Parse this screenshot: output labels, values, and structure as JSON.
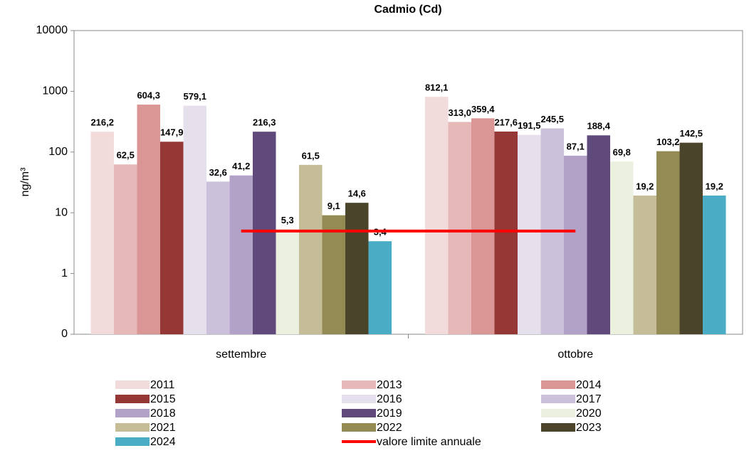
{
  "chart_data": {
    "type": "bar",
    "title": "Cadmio (Cd)",
    "y_label": "ng/m³",
    "categories": [
      "settembre",
      "ottobre"
    ],
    "log_scale": true,
    "ylim": [
      0.1,
      10000
    ],
    "yticks": [
      {
        "value": 0.1,
        "label": "0"
      },
      1,
      10,
      100,
      1000,
      10000
    ],
    "series": [
      {
        "name": "2011",
        "color": "#f2dcdb",
        "values": [
          216.2,
          812.1
        ],
        "value_labels": [
          "216,2",
          "812,1"
        ]
      },
      {
        "name": "2013",
        "color": "#e6b9b8",
        "values": [
          62.5,
          313.0
        ],
        "value_labels": [
          "62,5",
          "313,0"
        ]
      },
      {
        "name": "2014",
        "color": "#d99694",
        "values": [
          604.3,
          359.4
        ],
        "value_labels": [
          "604,3",
          "359,4"
        ]
      },
      {
        "name": "2015",
        "color": "#953735",
        "values": [
          147.9,
          217.6
        ],
        "value_labels": [
          "147,9",
          "217,6"
        ]
      },
      {
        "name": "2016",
        "color": "#e6e0ec",
        "values": [
          579.1,
          191.5
        ],
        "value_labels": [
          "579,1",
          "191,5"
        ]
      },
      {
        "name": "2017",
        "color": "#ccc1da",
        "values": [
          32.6,
          245.5
        ],
        "value_labels": [
          "32,6",
          "245,5"
        ]
      },
      {
        "name": "2018",
        "color": "#b3a2c7",
        "values": [
          41.2,
          87.1
        ],
        "value_labels": [
          "41,2",
          "87,1"
        ]
      },
      {
        "name": "2019",
        "color": "#604a7b",
        "values": [
          216.3,
          188.4
        ],
        "value_labels": [
          "216,3",
          "188,4"
        ]
      },
      {
        "name": "2020",
        "color": "#ebf1de",
        "values": [
          5.3,
          69.8
        ],
        "value_labels": [
          "5,3",
          "69,8"
        ]
      },
      {
        "name": "2021",
        "color": "#c4bd97",
        "values": [
          61.5,
          19.2
        ],
        "value_labels": [
          "61,5",
          "19,2"
        ]
      },
      {
        "name": "2022",
        "color": "#948a54",
        "values": [
          9.1,
          103.2
        ],
        "value_labels": [
          "9,1",
          "103,2"
        ]
      },
      {
        "name": "2023",
        "color": "#4a452a",
        "values": [
          14.6,
          142.5
        ],
        "value_labels": [
          "14,6",
          "142,5"
        ]
      },
      {
        "name": "2024",
        "color": "#4bacc6",
        "values": [
          3.4,
          19.2
        ],
        "value_labels": [
          "3,4",
          "19,2"
        ]
      },
      {
        "name": "valore limite annuale",
        "type": "line",
        "color": "#ff0000",
        "values": [
          5,
          5
        ]
      }
    ]
  }
}
